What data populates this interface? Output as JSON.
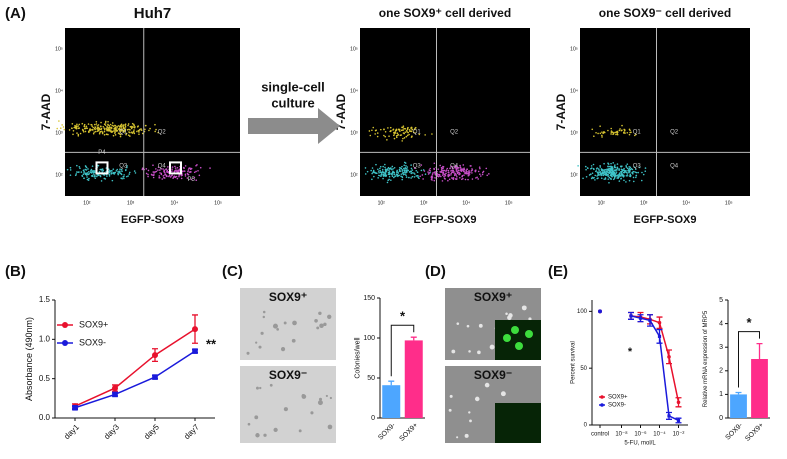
{
  "panel_labels": [
    "(A)",
    "(B)",
    "(C)",
    "(D)",
    "(E)"
  ],
  "flow": {
    "arrow_text": [
      "single-cell",
      "culture"
    ],
    "x_label": "EGFP-SOX9",
    "y_label": "7-AAD",
    "ticks": [
      "10²",
      "10³",
      "10⁴",
      "10⁵"
    ],
    "plots": [
      {
        "title": "Huh7",
        "gates": [
          "Q1",
          "Q2",
          "Q3",
          "Q4",
          "P4",
          "P5"
        ]
      },
      {
        "title": "one SOX9⁺ cell derived",
        "gates": [
          "Q1",
          "Q2",
          "Q3",
          "Q4"
        ]
      },
      {
        "title": "one SOX9⁻ cell derived",
        "gates": [
          "Q1",
          "Q2",
          "Q3",
          "Q4"
        ]
      }
    ]
  },
  "images": {
    "C": [
      "SOX9⁺",
      "SOX9⁻"
    ],
    "D": [
      "SOX9⁺",
      "SOX9⁻"
    ]
  },
  "chart_data": [
    {
      "type": "line",
      "categories": [
        "day1",
        "day3",
        "day5",
        "day7"
      ],
      "y_label": "Absorbance (490nm)",
      "ylim": [
        0,
        1.5
      ],
      "yticks": [
        {
          "value": 0,
          "label": "0.0"
        },
        0.5,
        {
          "value": 1,
          "label": "1.0"
        },
        1.5
      ],
      "legend": "upper left",
      "annotation": "**",
      "series": [
        {
          "name": "SOX9+",
          "color": "#e8112d",
          "values": [
            0.15,
            0.38,
            0.8,
            1.13
          ],
          "errors": [
            0.03,
            0.04,
            0.08,
            0.18
          ]
        },
        {
          "name": "SOX9-",
          "color": "#1a1adb",
          "values": [
            0.13,
            0.3,
            0.52,
            0.85
          ],
          "errors": [
            0.02,
            0.02,
            0.02,
            0.02
          ]
        }
      ]
    },
    {
      "type": "bar",
      "categories": [
        "SOX9-",
        "SOX9+"
      ],
      "values": [
        41,
        97
      ],
      "errors": [
        5,
        4
      ],
      "colors": [
        "#4da6ff",
        "#ff2d8a"
      ],
      "y_label": "Colonies/well",
      "ylim": [
        0,
        150
      ],
      "yticks": [
        0,
        50,
        100,
        150
      ],
      "annotation": "*"
    },
    {
      "type": "line",
      "x_label": "5-FU, mol/L",
      "y_label": "Percent survival",
      "xscale": "log",
      "xlim": [
        1e-09,
        0.1
      ],
      "xticks": [
        {
          "value": 1e-08,
          "label": "10⁻⁸"
        },
        {
          "value": 1e-06,
          "label": "10⁻⁶"
        },
        {
          "value": 0.0001,
          "label": "10⁻⁴"
        },
        {
          "value": 0.01,
          "label": "10⁻²"
        }
      ],
      "control_label": "control",
      "ylim": [
        0,
        110
      ],
      "yticks": [
        0,
        50,
        100
      ],
      "legend": "lower left",
      "annotation": "*",
      "x": [
        1e-07,
        1e-06,
        1e-05,
        0.0001,
        0.001,
        0.01
      ],
      "series": [
        {
          "name": "SOX9+",
          "color": "#e8112d",
          "control": 100,
          "values": [
            96,
            95,
            93,
            90,
            60,
            20
          ],
          "errors": [
            3,
            4,
            4,
            5,
            6,
            4
          ]
        },
        {
          "name": "SOX9-",
          "color": "#1a1adb",
          "control": 100,
          "values": [
            96,
            94,
            92,
            78,
            8,
            4
          ],
          "errors": [
            3,
            3,
            5,
            6,
            3,
            2
          ]
        }
      ]
    },
    {
      "type": "bar",
      "categories": [
        "SOX9-",
        "SOX9+"
      ],
      "values": [
        1.0,
        2.5
      ],
      "errors": [
        0.08,
        0.65
      ],
      "colors": [
        "#4da6ff",
        "#ff2d8a"
      ],
      "y_label": "Relative mRNA expression of MRP5",
      "ylim": [
        0,
        5
      ],
      "yticks": [
        0,
        1,
        2,
        3,
        4,
        5
      ],
      "annotation": "*"
    }
  ]
}
